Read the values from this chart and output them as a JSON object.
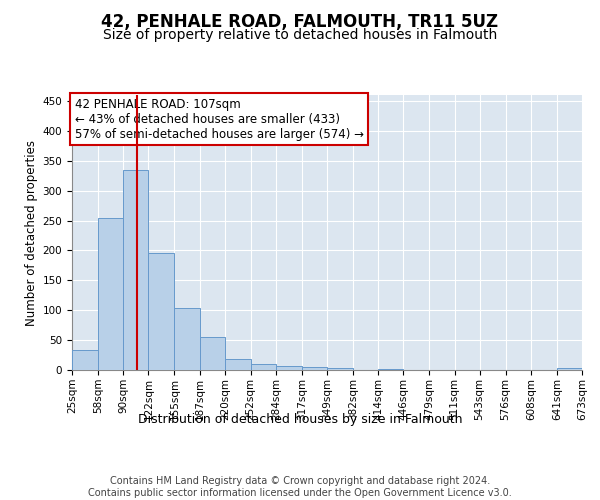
{
  "title1": "42, PENHALE ROAD, FALMOUTH, TR11 5UZ",
  "title2": "Size of property relative to detached houses in Falmouth",
  "xlabel": "Distribution of detached houses by size in Falmouth",
  "ylabel": "Number of detached properties",
  "bar_color": "#b8d0e8",
  "bar_edge_color": "#6699cc",
  "background_color": "#dce6f0",
  "grid_color": "#ffffff",
  "marker_value": 107,
  "marker_color": "#cc0000",
  "annotation_text": "42 PENHALE ROAD: 107sqm\n← 43% of detached houses are smaller (433)\n57% of semi-detached houses are larger (574) →",
  "annotation_box_color": "#ffffff",
  "annotation_box_edge": "#cc0000",
  "bins": [
    25,
    58,
    90,
    122,
    155,
    187,
    220,
    252,
    284,
    317,
    349,
    382,
    414,
    446,
    479,
    511,
    543,
    576,
    608,
    641,
    673
  ],
  "bar_heights": [
    33,
    255,
    335,
    196,
    103,
    56,
    18,
    10,
    7,
    5,
    3,
    0,
    1,
    0,
    0,
    0,
    0,
    0,
    0,
    3
  ],
  "ylim": [
    0,
    460
  ],
  "yticks": [
    0,
    50,
    100,
    150,
    200,
    250,
    300,
    350,
    400,
    450
  ],
  "footer_text": "Contains HM Land Registry data © Crown copyright and database right 2024.\nContains public sector information licensed under the Open Government Licence v3.0.",
  "title1_fontsize": 12,
  "title2_fontsize": 10,
  "xlabel_fontsize": 9,
  "ylabel_fontsize": 8.5,
  "tick_fontsize": 7.5,
  "annotation_fontsize": 8.5,
  "footer_fontsize": 7
}
